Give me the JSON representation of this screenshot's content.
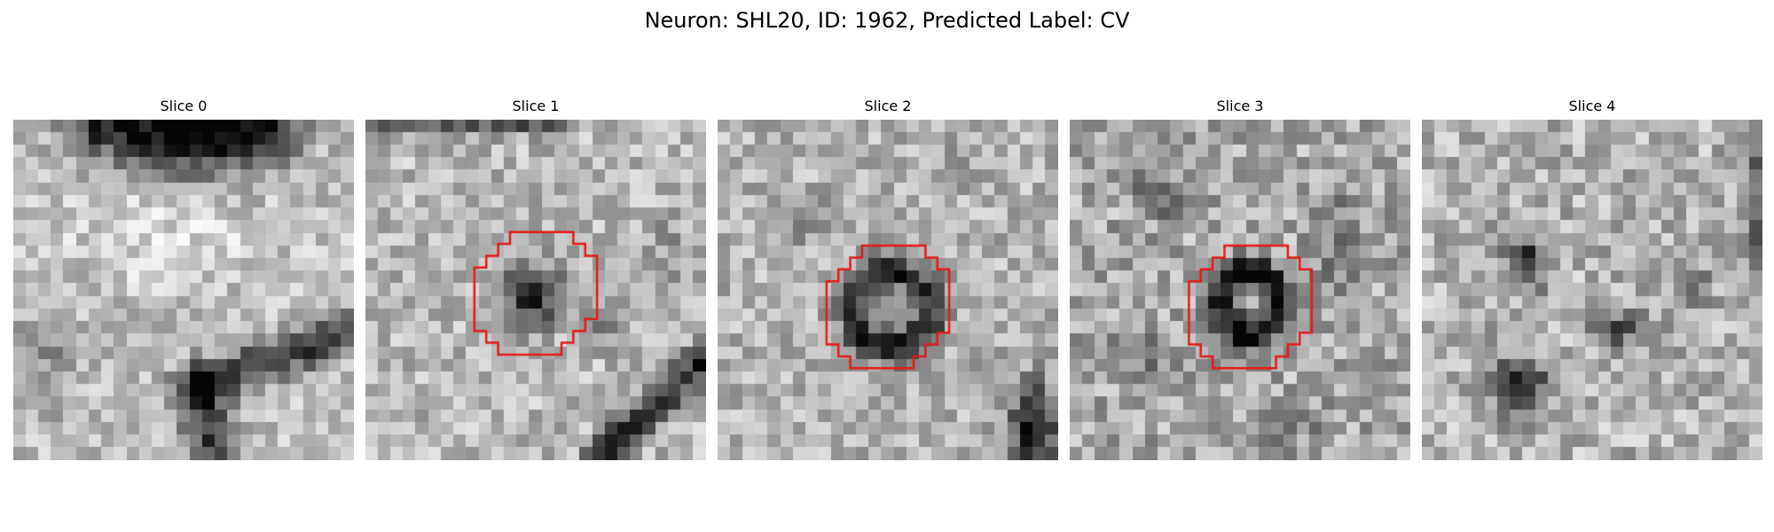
{
  "figure": {
    "title": "Neuron: SHL20, ID: 1962, Predicted Label: CV"
  },
  "outline_color": "#e41a1c",
  "panels": [
    {
      "title": "Slice 0",
      "has_outline": false
    },
    {
      "title": "Slice 1",
      "has_outline": true
    },
    {
      "title": "Slice 2",
      "has_outline": true
    },
    {
      "title": "Slice 3",
      "has_outline": true
    },
    {
      "title": "Slice 4",
      "has_outline": false
    }
  ]
}
